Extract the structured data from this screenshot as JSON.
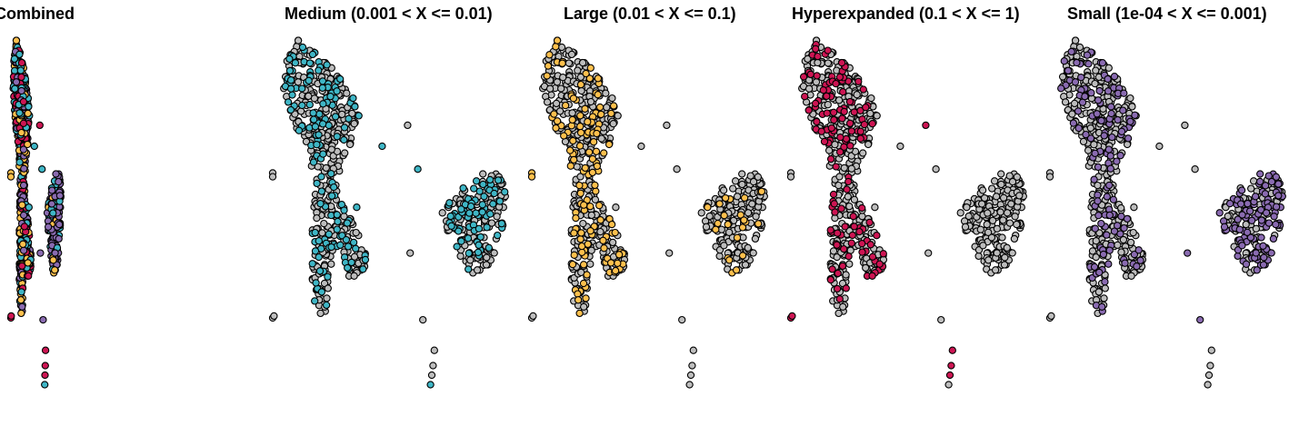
{
  "chart_data": {
    "type": "scatter",
    "description_style": "faceted UMAP embedding of cells colored by clonal frequency category",
    "background_color": "#bdbdbd",
    "outline_color": "#000000",
    "colors": {
      "Medium": "#3fb6c6",
      "Large": "#ffc04d",
      "Hyperexpanded": "#cd1553",
      "Small": "#8a6bb1"
    },
    "panels": [
      {
        "title": "Combined",
        "highlight": "All"
      },
      {
        "title": "Medium (0.001 < X <= 0.01)",
        "highlight": "Medium"
      },
      {
        "title": "Large (0.01 < X <= 0.1)",
        "highlight": "Large"
      },
      {
        "title": "Hyperexpanded (0.1 < X <= 1)",
        "highlight": "Hyperexpanded"
      },
      {
        "title": "Small (1e-04 < X <= 0.001)",
        "highlight": "Small"
      }
    ],
    "outliers": [
      {
        "x": 0.0,
        "y": 0.63,
        "group": "Large"
      },
      {
        "x": 0.0,
        "y": 0.62,
        "group": "Large"
      },
      {
        "x": 0.53,
        "y": 0.755,
        "group": "Hyperexpanded"
      },
      {
        "x": 0.43,
        "y": 0.7,
        "group": "Medium"
      },
      {
        "x": 0.54,
        "y": 0.42,
        "group": "Small"
      },
      {
        "x": 0.33,
        "y": 0.54,
        "group": "Medium"
      },
      {
        "x": 0.57,
        "y": 0.64,
        "group": "Medium"
      },
      {
        "x": 0.3,
        "y": 0.36,
        "group": "Hyperexpanded"
      },
      {
        "x": 0.32,
        "y": 0.36,
        "group": "Hyperexpanded"
      },
      {
        "x": 0.0,
        "y": 0.25,
        "group": "Hyperexpanded"
      },
      {
        "x": 0.005,
        "y": 0.255,
        "group": "Hyperexpanded"
      },
      {
        "x": 0.59,
        "y": 0.245,
        "group": "Small"
      },
      {
        "x": 0.635,
        "y": 0.165,
        "group": "Hyperexpanded"
      },
      {
        "x": 0.63,
        "y": 0.125,
        "group": "Hyperexpanded"
      },
      {
        "x": 0.625,
        "y": 0.1,
        "group": "Hyperexpanded"
      },
      {
        "x": 0.62,
        "y": 0.075,
        "group": "Medium"
      }
    ]
  }
}
